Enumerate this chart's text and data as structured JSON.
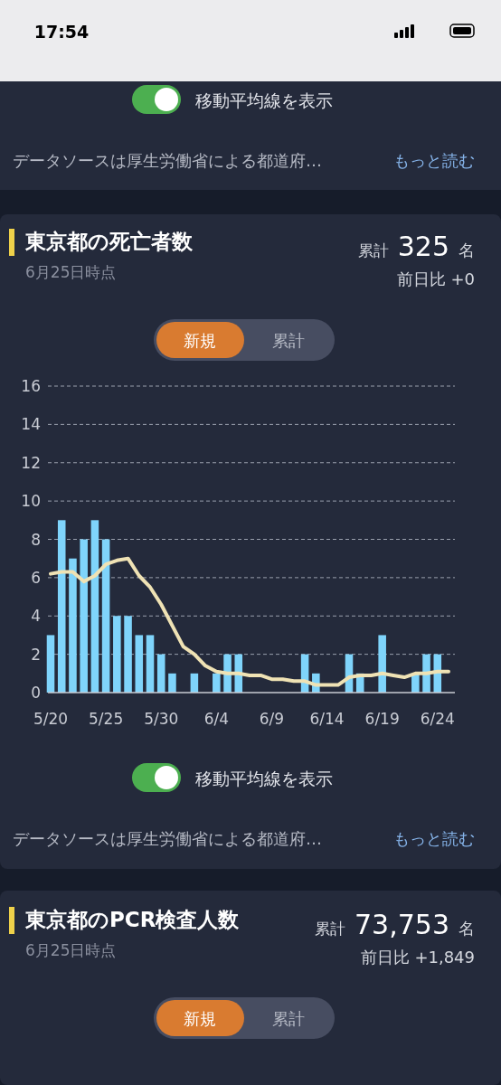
{
  "chart_data": [
    {
      "type": "other",
      "annotations": [
        "17:54",
        "移動平均線を表示",
        "データソースは厚生労働省による都道府…",
        "もっと読む"
      ]
    },
    {
      "type": "bar",
      "title": "東京都の死亡者数",
      "subtitle": "6月25日時点",
      "annotations": [
        "累計",
        "325",
        "名",
        "前日比 +0",
        "新規",
        "累計",
        "移動平均線を表示",
        "データソースは厚生労働省による都道府…",
        "もっと読む"
      ],
      "categories": [
        "5/20",
        null,
        null,
        null,
        null,
        "5/25",
        null,
        null,
        null,
        null,
        "5/30",
        null,
        null,
        null,
        null,
        "6/4",
        null,
        null,
        null,
        null,
        "6/9",
        null,
        null,
        null,
        null,
        "6/14",
        null,
        null,
        null,
        null,
        "6/19",
        null,
        null,
        null,
        null,
        "6/24",
        null
      ],
      "series": [
        {
          "type": "bar",
          "color": "#7fd4fb",
          "values": [
            3,
            9,
            7,
            8,
            9,
            8,
            4,
            4,
            3,
            3,
            2,
            1,
            0,
            1,
            0,
            1,
            2,
            2,
            0,
            0,
            0,
            0,
            0,
            2,
            1,
            0,
            0,
            2,
            1,
            0,
            3,
            0,
            0,
            1,
            2,
            2,
            0
          ]
        },
        {
          "type": "line",
          "color": "#efe2b4",
          "values": [
            6.2,
            6.3,
            6.3,
            5.8,
            6.1,
            6.7,
            6.9,
            7.0,
            6.1,
            5.5,
            4.6,
            3.5,
            2.4,
            2.0,
            1.4,
            1.1,
            1.0,
            1.0,
            0.9,
            0.9,
            0.7,
            0.7,
            0.6,
            0.6,
            0.4,
            0.4,
            0.4,
            0.8,
            0.9,
            0.9,
            1.0,
            0.9,
            0.8,
            1.0,
            1.0,
            1.1,
            1.1
          ]
        }
      ],
      "ylim": [
        0,
        16
      ],
      "yticks": [
        0,
        2,
        4,
        6,
        8,
        10,
        12,
        14,
        16
      ],
      "grid": "y",
      "line_style": "solid",
      "marker": "none"
    },
    {
      "type": "other",
      "title": "東京都のPCR検査人数",
      "subtitle": "6月25日時点",
      "annotations": [
        "累計",
        "73,753",
        "名",
        "前日比 +1,849",
        "新規",
        "累計"
      ]
    }
  ]
}
